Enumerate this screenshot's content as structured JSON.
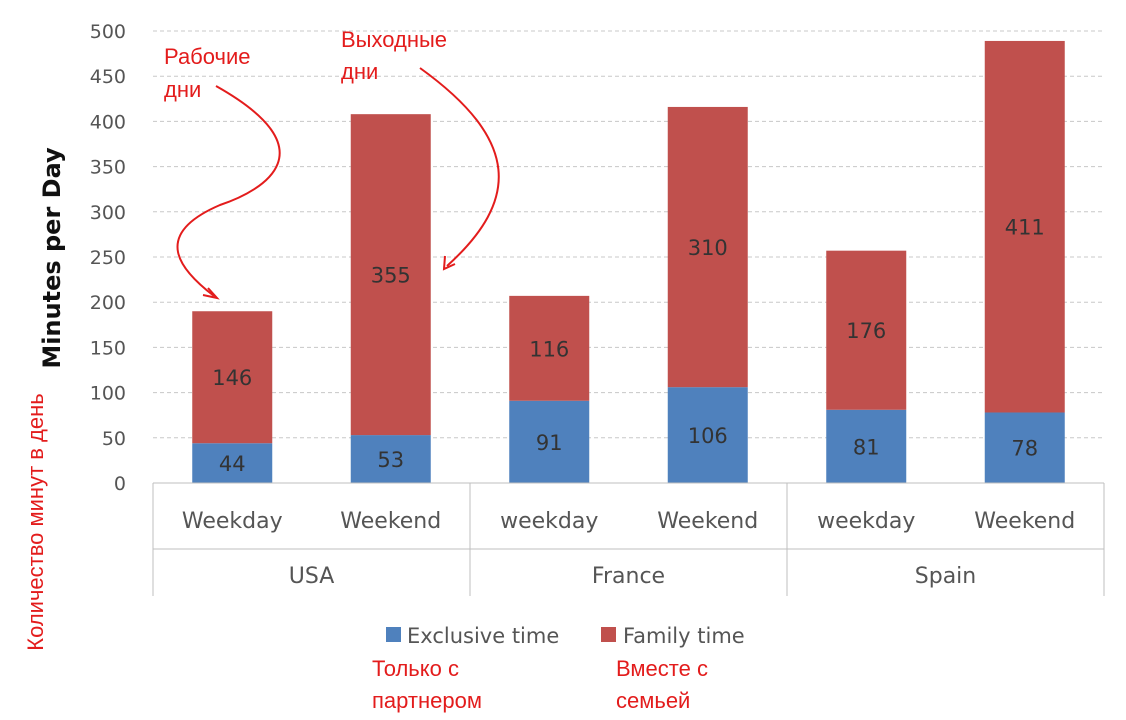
{
  "chart_data": {
    "type": "bar",
    "stacked": true,
    "groups": [
      "USA",
      "France",
      "Spain"
    ],
    "categories": [
      "Weekday",
      "Weekend",
      "weekday",
      "Weekend",
      "weekday",
      "Weekend"
    ],
    "category_groups": [
      "USA",
      "USA",
      "France",
      "France",
      "Spain",
      "Spain"
    ],
    "series": [
      {
        "name": "Exclusive time",
        "color": "#4f81bd",
        "values": [
          44,
          53,
          91,
          106,
          81,
          78
        ]
      },
      {
        "name": "Family time",
        "color": "#c0504d",
        "values": [
          146,
          355,
          116,
          310,
          176,
          411
        ]
      }
    ],
    "ylabel": "Minutes per Day",
    "ylim": [
      0,
      500
    ],
    "yticks": [
      0,
      50,
      100,
      150,
      200,
      250,
      300,
      350,
      400,
      450,
      500
    ],
    "grid": true,
    "legend_position": "bottom"
  },
  "annotations": {
    "ylabel_translation": "Количество минут в день",
    "weekday_note": [
      "Рабочие",
      "дни"
    ],
    "weekend_note": [
      "Выходные",
      "дни"
    ],
    "exclusive_note": [
      "Только с",
      "партнером"
    ],
    "family_note": [
      "Вместе с",
      "семьей"
    ],
    "color": "#e31c1c"
  }
}
